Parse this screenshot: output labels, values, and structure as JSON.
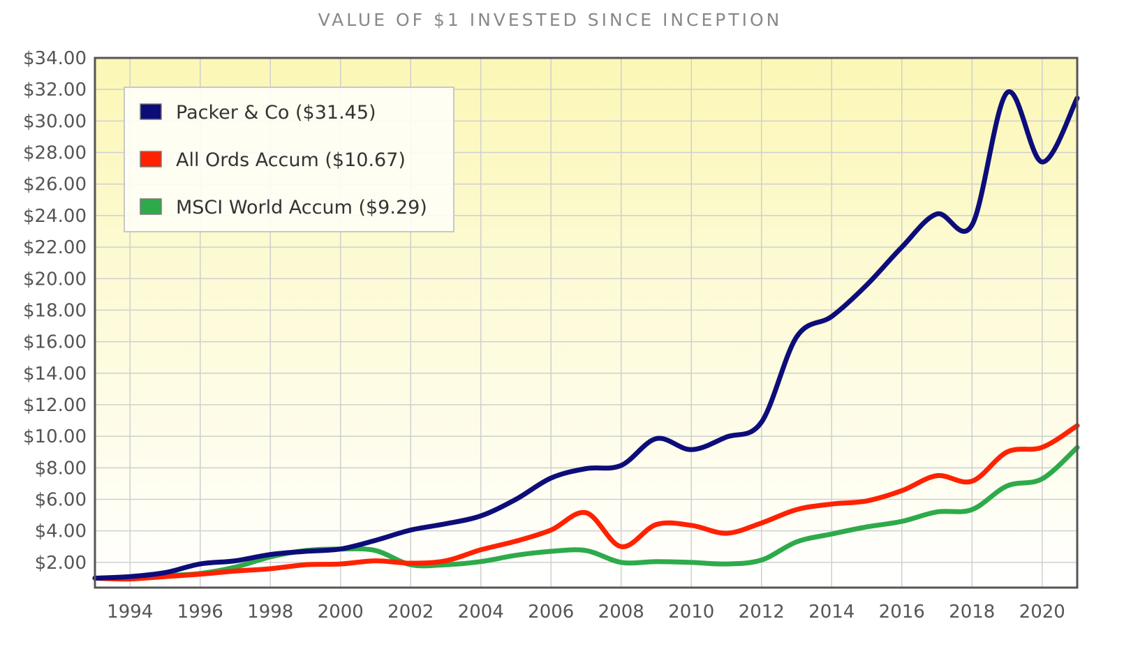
{
  "chart_data": {
    "type": "line",
    "title": "VALUE OF $1 INVESTED SINCE INCEPTION",
    "xlabel": "",
    "ylabel": "",
    "xlim": [
      1993,
      2021
    ],
    "ylim": [
      0.4,
      34
    ],
    "x_ticks": [
      1994,
      1996,
      1998,
      2000,
      2002,
      2004,
      2006,
      2008,
      2010,
      2012,
      2014,
      2016,
      2018,
      2020
    ],
    "x_tick_labels": [
      "1994",
      "1996",
      "1998",
      "2000",
      "2002",
      "2004",
      "2006",
      "2008",
      "2010",
      "2012",
      "2014",
      "2016",
      "2018",
      "2020"
    ],
    "y_ticks": [
      2,
      4,
      6,
      8,
      10,
      12,
      14,
      16,
      18,
      20,
      22,
      24,
      26,
      28,
      30,
      32,
      34
    ],
    "y_tick_labels": [
      "$2.00",
      "$4.00",
      "$6.00",
      "$8.00",
      "$10.00",
      "$12.00",
      "$14.00",
      "$16.00",
      "$18.00",
      "$20.00",
      "$22.00",
      "$24.00",
      "$26.00",
      "$28.00",
      "$30.00",
      "$32.00",
      "$34.00"
    ],
    "grid": true,
    "legend_position": "top-left",
    "x": [
      1993,
      1994,
      1995,
      1996,
      1997,
      1998,
      1999,
      2000,
      2001,
      2002,
      2003,
      2004,
      2005,
      2006,
      2007,
      2008,
      2009,
      2010,
      2011,
      2012,
      2013,
      2014,
      2015,
      2016,
      2017,
      2018,
      2019,
      2020,
      2021
    ],
    "series": [
      {
        "name": "Packer & Co",
        "legend_label": "Packer & Co ($31.45)",
        "color": "#0d0d7a",
        "values": [
          1.0,
          1.1,
          1.35,
          1.9,
          2.1,
          2.5,
          2.7,
          2.85,
          3.4,
          4.05,
          4.45,
          4.95,
          6.0,
          7.35,
          7.95,
          8.15,
          9.85,
          9.15,
          9.95,
          10.9,
          16.3,
          17.6,
          19.6,
          22.0,
          24.1,
          23.4,
          31.8,
          27.4,
          31.45
        ]
      },
      {
        "name": "All Ords Accum",
        "legend_label": "All Ords Accum ($10.67)",
        "color": "#ff2200",
        "values": [
          1.0,
          0.95,
          1.1,
          1.25,
          1.45,
          1.6,
          1.85,
          1.9,
          2.1,
          1.95,
          2.1,
          2.8,
          3.35,
          4.05,
          5.15,
          3.0,
          4.4,
          4.35,
          3.85,
          4.5,
          5.35,
          5.7,
          5.9,
          6.55,
          7.5,
          7.15,
          9.0,
          9.3,
          10.67
        ]
      },
      {
        "name": "MSCI World Accum",
        "legend_label": "MSCI World Accum ($9.29)",
        "color": "#2eaa4a",
        "values": [
          1.0,
          0.95,
          1.15,
          1.3,
          1.7,
          2.35,
          2.75,
          2.85,
          2.75,
          1.85,
          1.85,
          2.05,
          2.45,
          2.7,
          2.75,
          2.0,
          2.05,
          2.0,
          1.9,
          2.15,
          3.3,
          3.8,
          4.25,
          4.6,
          5.2,
          5.35,
          6.85,
          7.3,
          9.29
        ]
      }
    ]
  },
  "colors": {
    "plot_top": "#fbf7b6",
    "plot_bottom": "#ffffff",
    "grid": "#cfcfcf",
    "frame": "#555555"
  }
}
